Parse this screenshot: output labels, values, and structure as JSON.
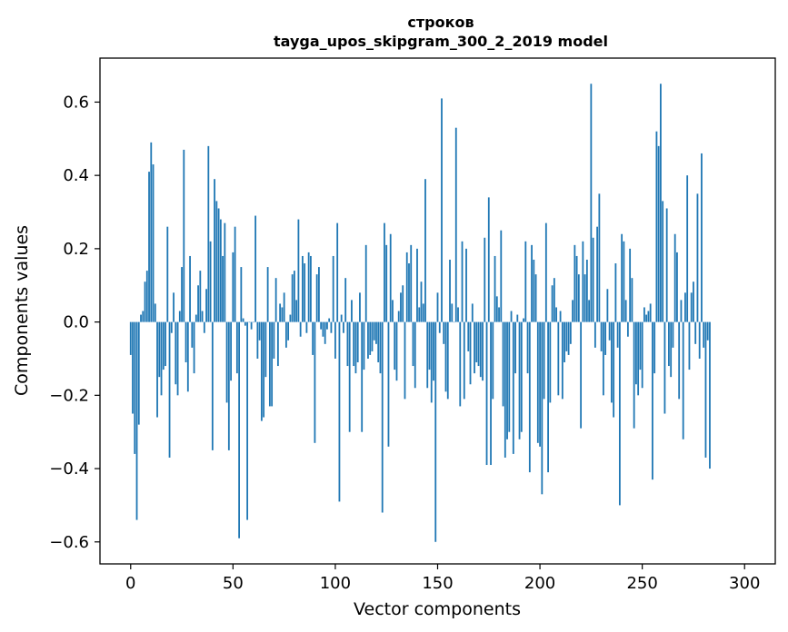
{
  "chart_data": {
    "type": "bar",
    "title": "строков",
    "subtitle": "tayga_upos_skipgram_300_2_2019 model",
    "xlabel": "Vector components",
    "ylabel": "Components values",
    "xlim": [
      -15,
      315
    ],
    "ylim": [
      -0.66,
      0.72
    ],
    "xticks": [
      0,
      50,
      100,
      150,
      200,
      250,
      300
    ],
    "xtick_labels": [
      "0",
      "50",
      "100",
      "150",
      "200",
      "250",
      "300"
    ],
    "yticks": [
      -0.6,
      -0.4,
      -0.2,
      0.0,
      0.2,
      0.4,
      0.6
    ],
    "ytick_labels": [
      "−0.6",
      "−0.4",
      "−0.2",
      "0.0",
      "0.2",
      "0.4",
      "0.6"
    ],
    "bar_color": "#1f77b4",
    "values": [
      -0.09,
      -0.25,
      -0.36,
      -0.54,
      -0.28,
      0.02,
      0.03,
      0.11,
      0.14,
      0.41,
      0.49,
      0.43,
      0.05,
      -0.26,
      -0.15,
      -0.2,
      -0.13,
      -0.12,
      0.26,
      -0.37,
      -0.03,
      0.08,
      -0.17,
      -0.2,
      0.03,
      0.15,
      0.47,
      -0.11,
      -0.19,
      0.18,
      -0.07,
      -0.14,
      0.02,
      0.1,
      0.14,
      0.03,
      -0.03,
      0.09,
      0.48,
      0.22,
      -0.35,
      0.39,
      0.33,
      0.31,
      0.28,
      0.18,
      0.27,
      -0.22,
      -0.35,
      -0.16,
      0.19,
      0.26,
      -0.14,
      -0.59,
      0.15,
      0.01,
      -0.01,
      -0.54,
      0.0,
      -0.02,
      0.0,
      0.29,
      -0.1,
      -0.05,
      -0.27,
      -0.26,
      -0.15,
      0.15,
      -0.23,
      -0.23,
      -0.1,
      0.12,
      -0.12,
      0.05,
      0.04,
      0.08,
      -0.07,
      -0.05,
      0.02,
      0.13,
      0.14,
      0.06,
      0.28,
      -0.04,
      0.18,
      0.16,
      -0.03,
      0.19,
      0.18,
      -0.09,
      -0.33,
      0.13,
      0.15,
      -0.02,
      -0.04,
      -0.06,
      -0.02,
      0.01,
      -0.03,
      0.18,
      -0.1,
      0.27,
      -0.49,
      0.02,
      -0.03,
      0.12,
      -0.12,
      -0.3,
      0.06,
      -0.12,
      -0.14,
      -0.11,
      0.08,
      -0.3,
      -0.13,
      0.21,
      -0.1,
      -0.09,
      -0.08,
      -0.05,
      -0.06,
      -0.11,
      -0.14,
      -0.52,
      0.27,
      0.21,
      -0.34,
      0.24,
      0.06,
      -0.13,
      -0.16,
      0.03,
      0.08,
      0.1,
      -0.21,
      0.19,
      0.16,
      0.21,
      -0.12,
      -0.18,
      0.2,
      0.04,
      0.11,
      0.05,
      0.39,
      -0.18,
      -0.13,
      -0.22,
      -0.16,
      -0.6,
      0.08,
      -0.03,
      0.61,
      -0.06,
      -0.19,
      -0.21,
      0.17,
      0.05,
      0.0,
      0.53,
      0.04,
      -0.23,
      0.22,
      -0.21,
      0.2,
      -0.08,
      -0.17,
      0.05,
      -0.14,
      -0.11,
      -0.12,
      -0.15,
      -0.16,
      0.23,
      -0.39,
      0.34,
      -0.39,
      -0.21,
      0.18,
      0.07,
      0.04,
      0.25,
      -0.23,
      -0.37,
      -0.32,
      -0.3,
      0.03,
      -0.36,
      -0.14,
      0.02,
      -0.32,
      -0.3,
      0.01,
      0.22,
      -0.14,
      -0.41,
      0.21,
      0.17,
      0.13,
      -0.33,
      -0.34,
      -0.47,
      -0.21,
      0.27,
      -0.41,
      -0.22,
      0.1,
      0.12,
      0.04,
      -0.2,
      0.03,
      -0.21,
      -0.11,
      -0.08,
      -0.09,
      -0.06,
      0.06,
      0.21,
      0.18,
      0.13,
      -0.29,
      0.22,
      0.13,
      0.17,
      0.06,
      0.65,
      0.23,
      -0.07,
      0.26,
      0.35,
      -0.08,
      -0.2,
      -0.09,
      0.09,
      -0.05,
      -0.22,
      -0.26,
      0.16,
      -0.07,
      -0.5,
      0.24,
      0.22,
      0.06,
      -0.04,
      0.2,
      0.12,
      -0.29,
      -0.17,
      -0.2,
      -0.13,
      -0.18,
      0.04,
      0.02,
      0.03,
      0.05,
      -0.43,
      -0.14,
      0.52,
      0.48,
      0.65,
      0.33,
      -0.25,
      0.31,
      -0.12,
      -0.15,
      -0.07,
      0.24,
      0.19,
      -0.21,
      0.06,
      -0.32,
      0.08,
      0.4,
      -0.13,
      0.08,
      0.11,
      -0.06,
      0.35,
      -0.1,
      0.46,
      -0.07,
      -0.37,
      -0.05,
      -0.4
    ]
  }
}
